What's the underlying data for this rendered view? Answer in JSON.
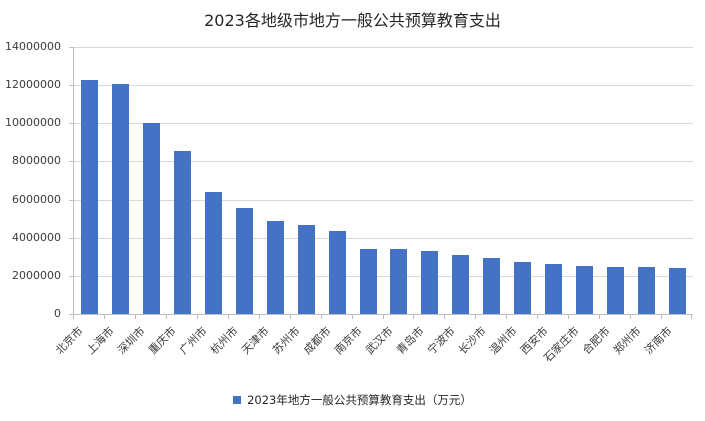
{
  "page": {
    "background": "#FFFFFF"
  },
  "chart_data": {
    "type": "bar",
    "title": "2023各地级市地方一般公共预算教育支出",
    "legend": {
      "label": "2023年地方一般公共预算教育支出（万元）",
      "position": "bottom"
    },
    "categories": [
      "北京市",
      "上海市",
      "深圳市",
      "重庆市",
      "广州市",
      "杭州市",
      "天津市",
      "苏州市",
      "成都市",
      "南京市",
      "武汉市",
      "青岛市",
      "宁波市",
      "长沙市",
      "温州市",
      "西安市",
      "石家庄市",
      "合肥市",
      "郑州市",
      "济南市"
    ],
    "series": [
      {
        "name": "2023年地方一般公共预算教育支出（万元）",
        "values": [
          12250000,
          12050000,
          10000000,
          8550000,
          6400000,
          5550000,
          4900000,
          4650000,
          4330000,
          3430000,
          3400000,
          3320000,
          3100000,
          2950000,
          2750000,
          2620000,
          2500000,
          2480000,
          2470000,
          2420000
        ]
      }
    ],
    "xlabel": "",
    "ylabel": "",
    "ylim": [
      0,
      14000000
    ],
    "yticks": [
      0,
      2000000,
      4000000,
      6000000,
      8000000,
      10000000,
      12000000,
      14000000
    ],
    "grid": true,
    "x_label_rotation_deg": 45,
    "colors": {
      "bar": "#4472C4",
      "gridline": "#D9D9D9",
      "axis": "#BFBFBF",
      "tick_text": "#3B3B3B",
      "title_text": "#262626"
    }
  }
}
